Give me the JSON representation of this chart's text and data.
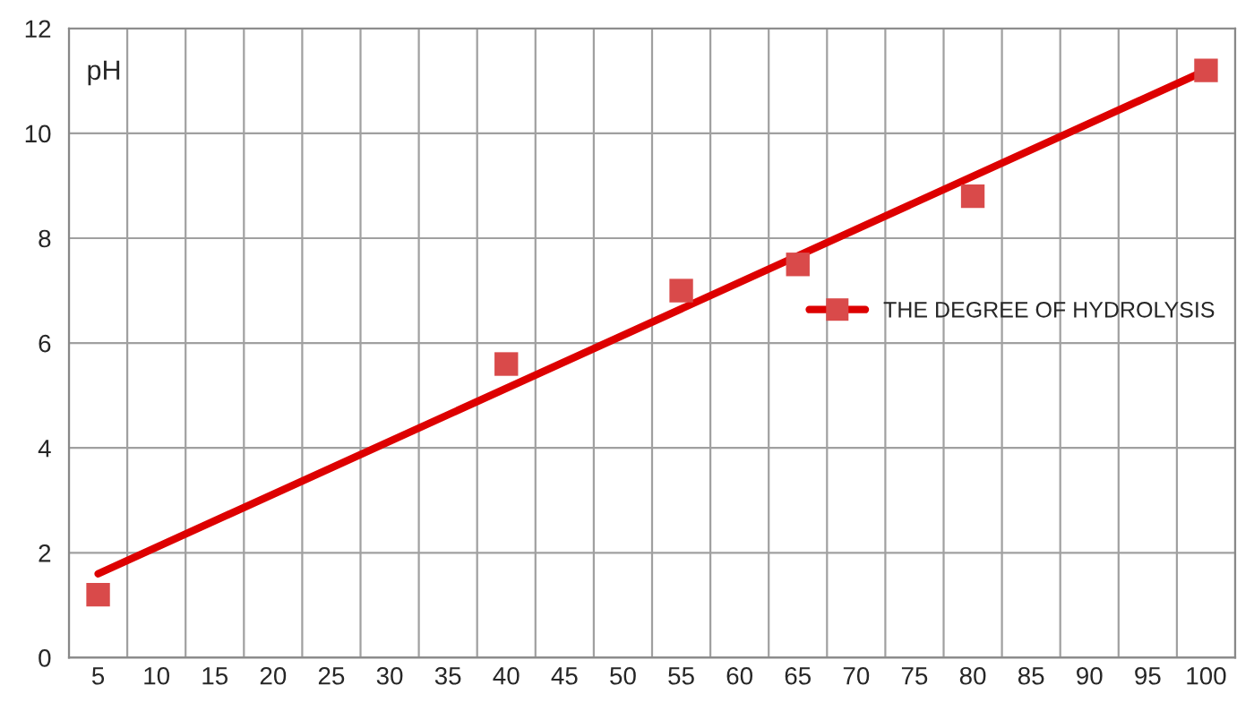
{
  "chart_data": {
    "type": "scatter",
    "ylabel": "pH",
    "categories": [
      "5",
      "10",
      "15",
      "20",
      "25",
      "30",
      "35",
      "40",
      "45",
      "50",
      "55",
      "60",
      "65",
      "70",
      "75",
      "80",
      "85",
      "90",
      "95",
      "100"
    ],
    "series": [
      {
        "name": "THE DEGREE OF HYDROLYSIS",
        "color": "#d94a4a",
        "marker": "square",
        "x": [
          "5",
          "40",
          "55",
          "65",
          "80",
          "100"
        ],
        "values": [
          1.2,
          5.6,
          7.0,
          7.5,
          8.8,
          11.2
        ]
      },
      {
        "type": "line",
        "color": "#dd0000",
        "marker": "none",
        "x": [
          "5",
          "100"
        ],
        "values": [
          1.6,
          11.2
        ]
      }
    ],
    "ylim": [
      0,
      12
    ],
    "yticks": [
      0,
      2,
      4,
      6,
      8,
      10,
      12
    ],
    "grid": true,
    "legend": "right"
  }
}
